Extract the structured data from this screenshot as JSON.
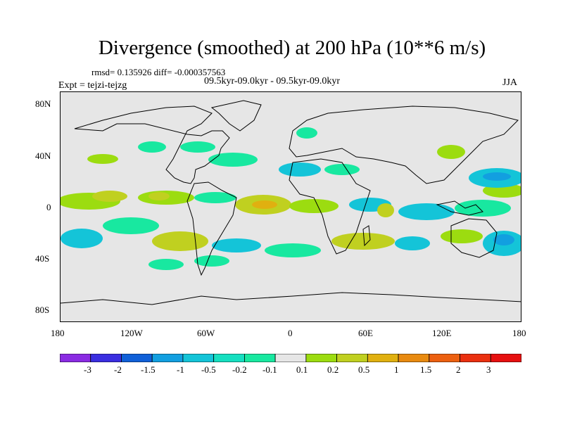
{
  "header": {
    "title": "Divergence (smoothed) at 200 hPa (10**6 m/s)",
    "stats": "rmsd= 0.135926 diff= -0.000357563",
    "period": "09.5kyr-09.0kyr - 09.5kyr-09.0kyr",
    "experiment": "Expt = tejzi-tejzg",
    "season": "JJA"
  },
  "axes": {
    "lat_ticks": [
      "80N",
      "40N",
      "0",
      "40S",
      "80S"
    ],
    "lon_ticks": [
      "180",
      "120W",
      "60W",
      "0",
      "60E",
      "120E",
      "180"
    ]
  },
  "colorbar": {
    "labels": [
      "-3",
      "-2",
      "-1.5",
      "-1",
      "-0.5",
      "-0.2",
      "-0.1",
      "0.1",
      "0.2",
      "0.5",
      "1",
      "1.5",
      "2",
      "3"
    ],
    "colors": [
      "#8a2be2",
      "#3a2ee0",
      "#1060d8",
      "#129fe0",
      "#14c4d8",
      "#16dfc0",
      "#18e8a0",
      "#e6e6e6",
      "#9cdc10",
      "#c0d020",
      "#e0b010",
      "#e88a10",
      "#ec6010",
      "#ea3010",
      "#e61010"
    ]
  },
  "colors": {
    "land_background": "#e6e6e6",
    "coast": "#000000"
  }
}
